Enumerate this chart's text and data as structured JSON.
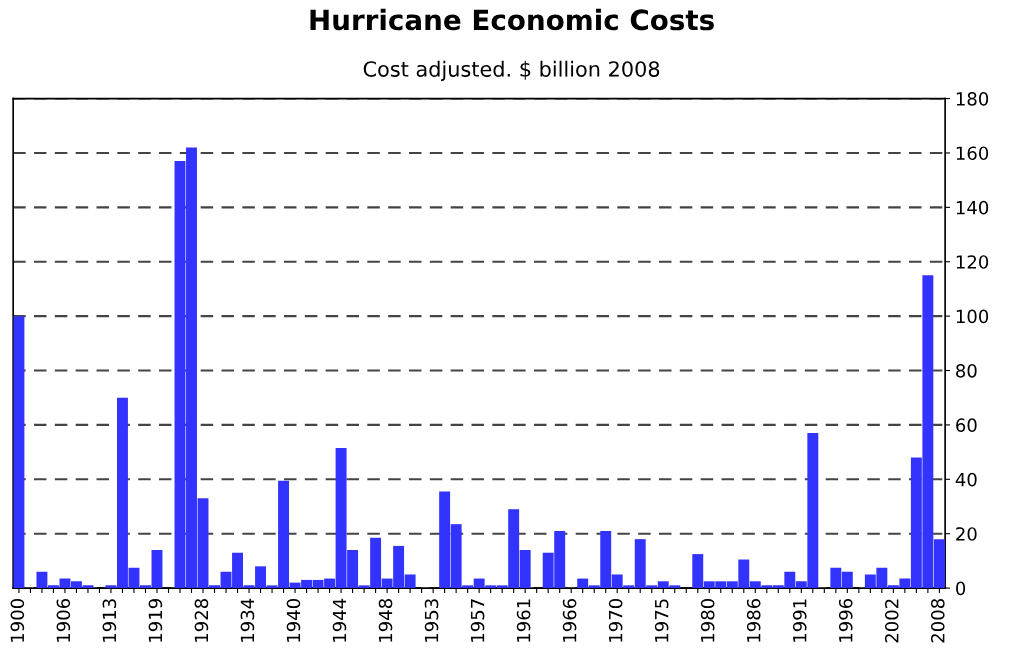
{
  "chart_data": {
    "type": "bar",
    "title": "Hurricane Economic Costs",
    "subtitle": "Cost adjusted. $ billion 2008",
    "categories": [
      "1900",
      null,
      null,
      null,
      "1906",
      null,
      null,
      null,
      "1913",
      null,
      null,
      null,
      "1919",
      null,
      null,
      null,
      "1928",
      null,
      null,
      null,
      "1934",
      null,
      null,
      null,
      "1940",
      null,
      null,
      null,
      "1944",
      null,
      null,
      null,
      "1948",
      null,
      null,
      null,
      "1953",
      null,
      null,
      null,
      "1957",
      null,
      null,
      null,
      "1961",
      null,
      null,
      null,
      "1966",
      null,
      null,
      null,
      "1970",
      null,
      null,
      null,
      "1975",
      null,
      null,
      null,
      "1980",
      null,
      null,
      null,
      "1986",
      null,
      null,
      null,
      "1991",
      null,
      null,
      null,
      "1996",
      null,
      null,
      null,
      "2002",
      null,
      null,
      null,
      "2008"
    ],
    "values": [
      100,
      0,
      6,
      1,
      3.5,
      2.5,
      1,
      0,
      1,
      70,
      7.5,
      1,
      14,
      0,
      157,
      162,
      33,
      1,
      6,
      13,
      1,
      8,
      1,
      39.5,
      2,
      3,
      3,
      3.5,
      51.5,
      14,
      1,
      18.5,
      3.5,
      15.5,
      5,
      0,
      0,
      35.5,
      23.5,
      1,
      3.5,
      1,
      1,
      29,
      14,
      0,
      13,
      21,
      0,
      3.5,
      1,
      21,
      5,
      1,
      18,
      1,
      2.5,
      1,
      0,
      12.5,
      2.5,
      2.5,
      2.5,
      10.5,
      2.5,
      1,
      1,
      6,
      2.5,
      57,
      0,
      7.5,
      6,
      0,
      5,
      7.5,
      1,
      3.5,
      48,
      115,
      18
    ],
    "color": "#3333ff",
    "ylim": [
      0,
      180
    ],
    "yticks": [
      0,
      20,
      40,
      60,
      80,
      100,
      120,
      140,
      160,
      180
    ],
    "grid": "y"
  }
}
